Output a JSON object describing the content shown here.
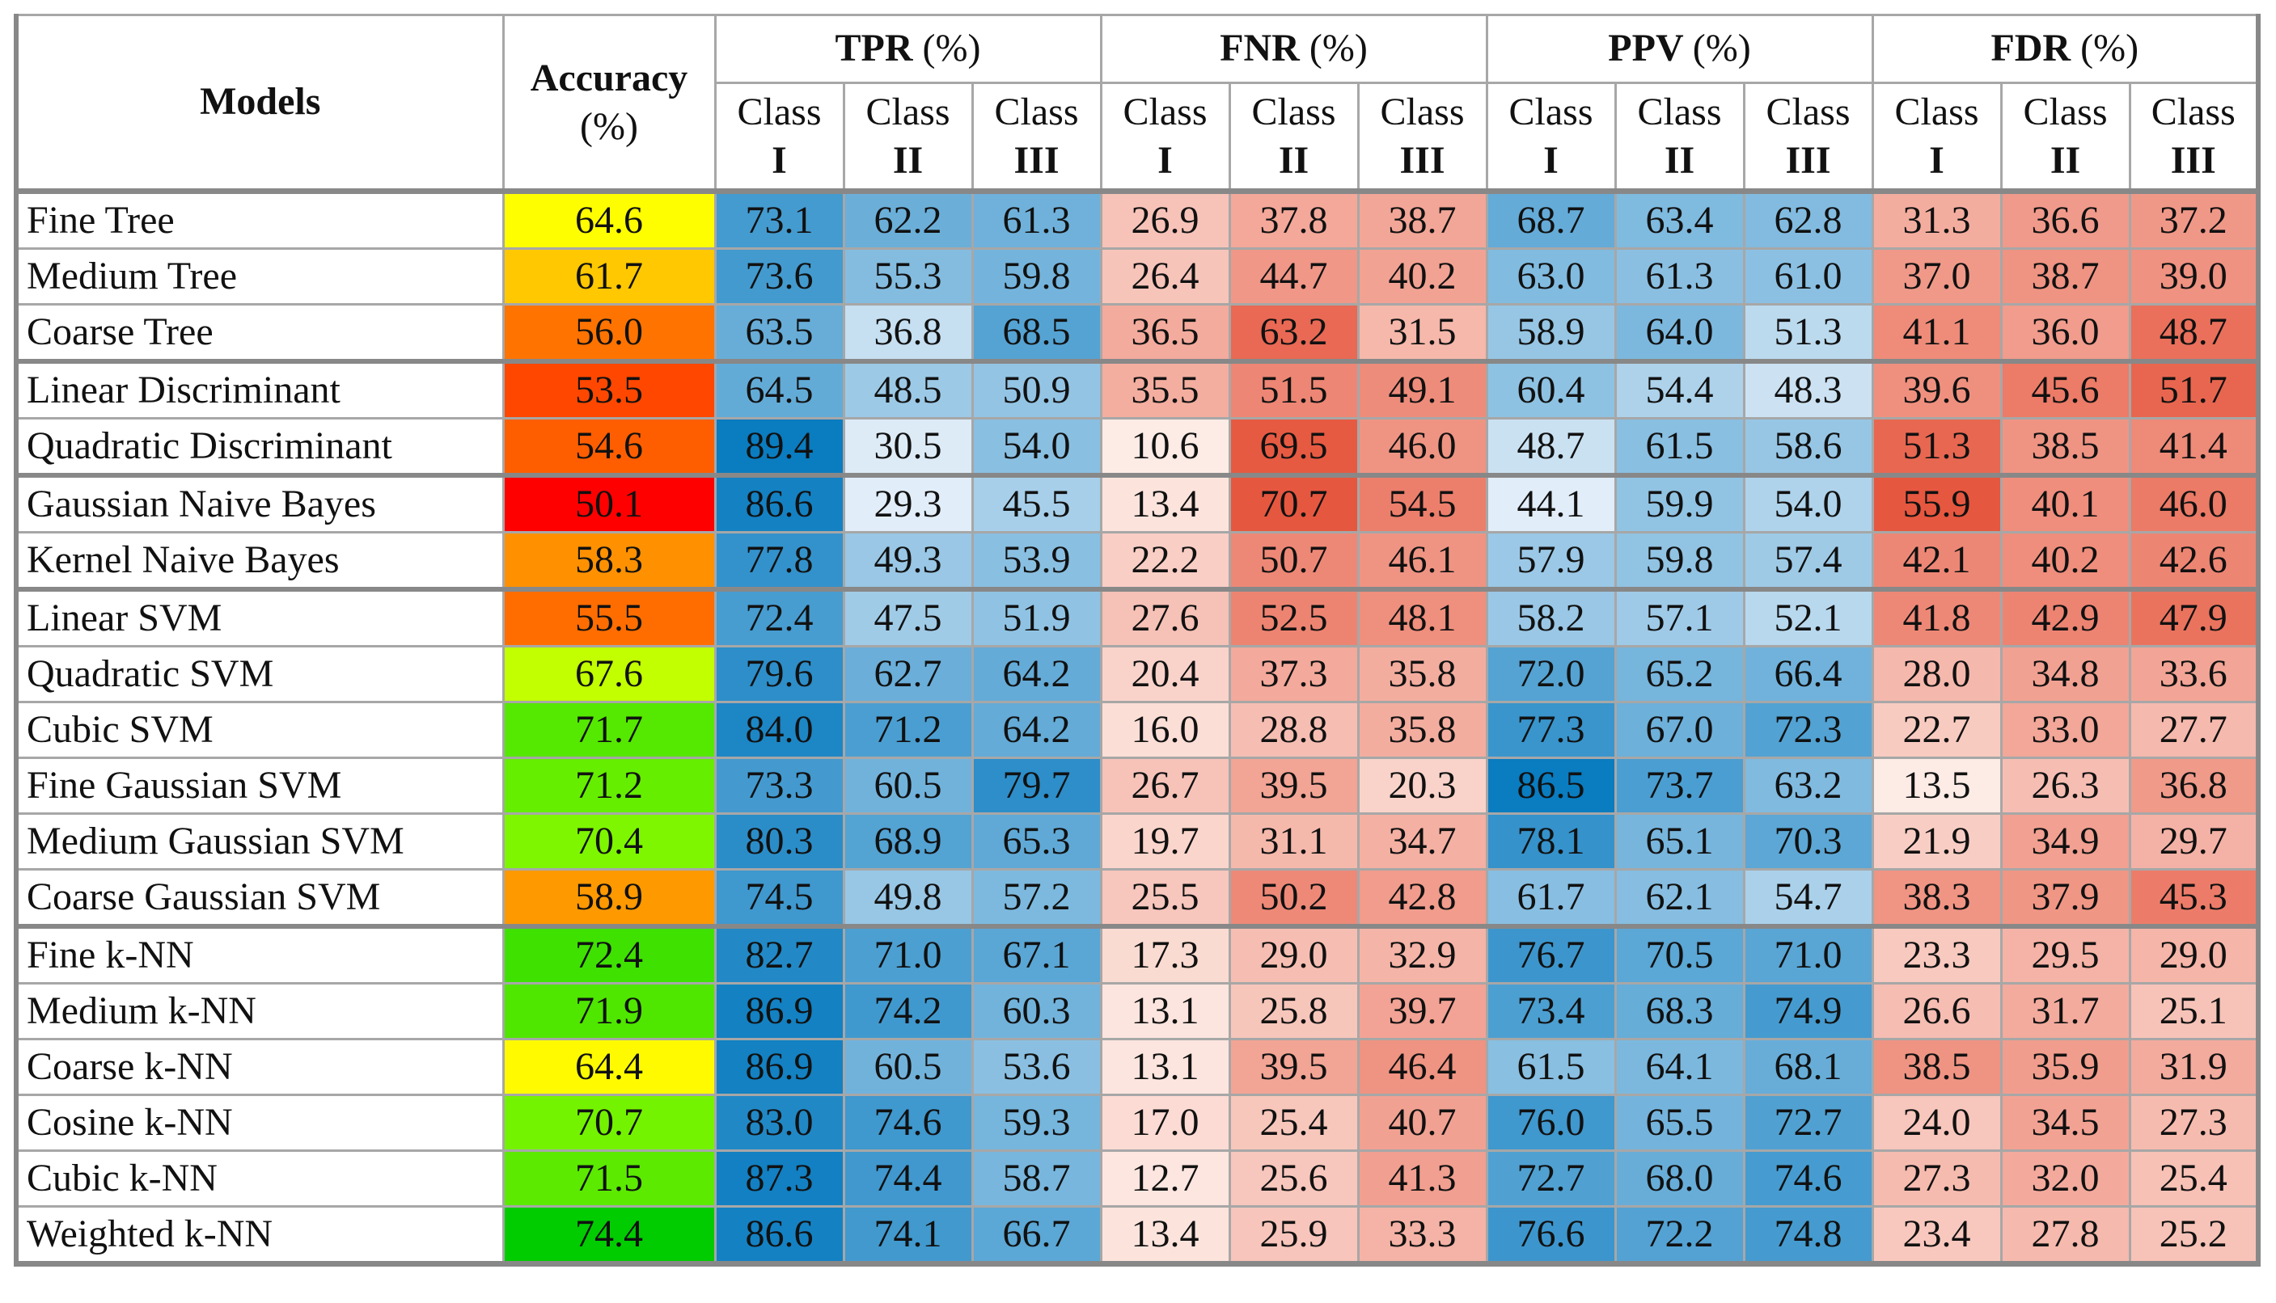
{
  "colors": {
    "tpr_ppv_low": "#e1edf8",
    "tpr_ppv_high": "#0a7cc0",
    "fnr_fdr_low": "#fdebe5",
    "fnr_fdr_high": "#e6573f",
    "acc_stops": [
      "#ff0000",
      "#ff6600",
      "#ffa500",
      "#ffff00",
      "#99ff00",
      "#00cc00"
    ]
  },
  "header": {
    "models": "Models",
    "accuracy": "Accuracy",
    "accuracy_unit": "(%)",
    "groups": [
      {
        "name": "TPR",
        "unit": "(%)"
      },
      {
        "name": "FNR",
        "unit": "(%)"
      },
      {
        "name": "PPV",
        "unit": "(%)"
      },
      {
        "name": "FDR",
        "unit": "(%)"
      }
    ],
    "class_word": "Class",
    "classes": [
      "I",
      "II",
      "III"
    ]
  },
  "rows": [
    {
      "model": "Fine Tree",
      "accuracy": "64.6",
      "tpr": [
        "73.1",
        "62.2",
        "61.3"
      ],
      "fnr": [
        "26.9",
        "37.8",
        "38.7"
      ],
      "ppv": [
        "68.7",
        "63.4",
        "62.8"
      ],
      "fdr": [
        "31.3",
        "36.6",
        "37.2"
      ]
    },
    {
      "model": "Medium Tree",
      "accuracy": "61.7",
      "tpr": [
        "73.6",
        "55.3",
        "59.8"
      ],
      "fnr": [
        "26.4",
        "44.7",
        "40.2"
      ],
      "ppv": [
        "63.0",
        "61.3",
        "61.0"
      ],
      "fdr": [
        "37.0",
        "38.7",
        "39.0"
      ]
    },
    {
      "model": "Coarse Tree",
      "accuracy": "56.0",
      "tpr": [
        "63.5",
        "36.8",
        "68.5"
      ],
      "fnr": [
        "36.5",
        "63.2",
        "31.5"
      ],
      "ppv": [
        "58.9",
        "64.0",
        "51.3"
      ],
      "fdr": [
        "41.1",
        "36.0",
        "48.7"
      ]
    },
    {
      "model": "Linear Discriminant",
      "accuracy": "53.5",
      "tpr": [
        "64.5",
        "48.5",
        "50.9"
      ],
      "fnr": [
        "35.5",
        "51.5",
        "49.1"
      ],
      "ppv": [
        "60.4",
        "54.4",
        "48.3"
      ],
      "fdr": [
        "39.6",
        "45.6",
        "51.7"
      ]
    },
    {
      "model": "Quadratic Discriminant",
      "accuracy": "54.6",
      "tpr": [
        "89.4",
        "30.5",
        "54.0"
      ],
      "fnr": [
        "10.6",
        "69.5",
        "46.0"
      ],
      "ppv": [
        "48.7",
        "61.5",
        "58.6"
      ],
      "fdr": [
        "51.3",
        "38.5",
        "41.4"
      ]
    },
    {
      "model": "Gaussian Naive Bayes",
      "accuracy": "50.1",
      "tpr": [
        "86.6",
        "29.3",
        "45.5"
      ],
      "fnr": [
        "13.4",
        "70.7",
        "54.5"
      ],
      "ppv": [
        "44.1",
        "59.9",
        "54.0"
      ],
      "fdr": [
        "55.9",
        "40.1",
        "46.0"
      ]
    },
    {
      "model": "Kernel Naive Bayes",
      "accuracy": "58.3",
      "tpr": [
        "77.8",
        "49.3",
        "53.9"
      ],
      "fnr": [
        "22.2",
        "50.7",
        "46.1"
      ],
      "ppv": [
        "57.9",
        "59.8",
        "57.4"
      ],
      "fdr": [
        "42.1",
        "40.2",
        "42.6"
      ]
    },
    {
      "model": "Linear SVM",
      "accuracy": "55.5",
      "tpr": [
        "72.4",
        "47.5",
        "51.9"
      ],
      "fnr": [
        "27.6",
        "52.5",
        "48.1"
      ],
      "ppv": [
        "58.2",
        "57.1",
        "52.1"
      ],
      "fdr": [
        "41.8",
        "42.9",
        "47.9"
      ]
    },
    {
      "model": "Quadratic SVM",
      "accuracy": "67.6",
      "tpr": [
        "79.6",
        "62.7",
        "64.2"
      ],
      "fnr": [
        "20.4",
        "37.3",
        "35.8"
      ],
      "ppv": [
        "72.0",
        "65.2",
        "66.4"
      ],
      "fdr": [
        "28.0",
        "34.8",
        "33.6"
      ]
    },
    {
      "model": "Cubic SVM",
      "accuracy": "71.7",
      "tpr": [
        "84.0",
        "71.2",
        "64.2"
      ],
      "fnr": [
        "16.0",
        "28.8",
        "35.8"
      ],
      "ppv": [
        "77.3",
        "67.0",
        "72.3"
      ],
      "fdr": [
        "22.7",
        "33.0",
        "27.7"
      ]
    },
    {
      "model": "Fine Gaussian SVM",
      "accuracy": "71.2",
      "tpr": [
        "73.3",
        "60.5",
        "79.7"
      ],
      "fnr": [
        "26.7",
        "39.5",
        "20.3"
      ],
      "ppv": [
        "86.5",
        "73.7",
        "63.2"
      ],
      "fdr": [
        "13.5",
        "26.3",
        "36.8"
      ]
    },
    {
      "model": "Medium Gaussian SVM",
      "accuracy": "70.4",
      "tpr": [
        "80.3",
        "68.9",
        "65.3"
      ],
      "fnr": [
        "19.7",
        "31.1",
        "34.7"
      ],
      "ppv": [
        "78.1",
        "65.1",
        "70.3"
      ],
      "fdr": [
        "21.9",
        "34.9",
        "29.7"
      ]
    },
    {
      "model": "Coarse Gaussian SVM",
      "accuracy": "58.9",
      "tpr": [
        "74.5",
        "49.8",
        "57.2"
      ],
      "fnr": [
        "25.5",
        "50.2",
        "42.8"
      ],
      "ppv": [
        "61.7",
        "62.1",
        "54.7"
      ],
      "fdr": [
        "38.3",
        "37.9",
        "45.3"
      ]
    },
    {
      "model": "Fine k-NN",
      "accuracy": "72.4",
      "tpr": [
        "82.7",
        "71.0",
        "67.1"
      ],
      "fnr": [
        "17.3",
        "29.0",
        "32.9"
      ],
      "ppv": [
        "76.7",
        "70.5",
        "71.0"
      ],
      "fdr": [
        "23.3",
        "29.5",
        "29.0"
      ]
    },
    {
      "model": "Medium k-NN",
      "accuracy": "71.9",
      "tpr": [
        "86.9",
        "74.2",
        "60.3"
      ],
      "fnr": [
        "13.1",
        "25.8",
        "39.7"
      ],
      "ppv": [
        "73.4",
        "68.3",
        "74.9"
      ],
      "fdr": [
        "26.6",
        "31.7",
        "25.1"
      ]
    },
    {
      "model": "Coarse k-NN",
      "accuracy": "64.4",
      "tpr": [
        "86.9",
        "60.5",
        "53.6"
      ],
      "fnr": [
        "13.1",
        "39.5",
        "46.4"
      ],
      "ppv": [
        "61.5",
        "64.1",
        "68.1"
      ],
      "fdr": [
        "38.5",
        "35.9",
        "31.9"
      ]
    },
    {
      "model": "Cosine k-NN",
      "accuracy": "70.7",
      "tpr": [
        "83.0",
        "74.6",
        "59.3"
      ],
      "fnr": [
        "17.0",
        "25.4",
        "40.7"
      ],
      "ppv": [
        "76.0",
        "65.5",
        "72.7"
      ],
      "fdr": [
        "24.0",
        "34.5",
        "27.3"
      ]
    },
    {
      "model": "Cubic k-NN",
      "accuracy": "71.5",
      "tpr": [
        "87.3",
        "74.4",
        "58.7"
      ],
      "fnr": [
        "12.7",
        "25.6",
        "41.3"
      ],
      "ppv": [
        "72.7",
        "68.0",
        "74.6"
      ],
      "fdr": [
        "27.3",
        "32.0",
        "25.4"
      ]
    },
    {
      "model": "Weighted k-NN",
      "accuracy": "74.4",
      "tpr": [
        "86.6",
        "74.1",
        "66.7"
      ],
      "fnr": [
        "13.4",
        "25.9",
        "33.3"
      ],
      "ppv": [
        "76.6",
        "72.2",
        "74.8"
      ],
      "fdr": [
        "23.4",
        "27.8",
        "25.2"
      ]
    }
  ],
  "group_starts": [
    0,
    3,
    5,
    7,
    13
  ]
}
